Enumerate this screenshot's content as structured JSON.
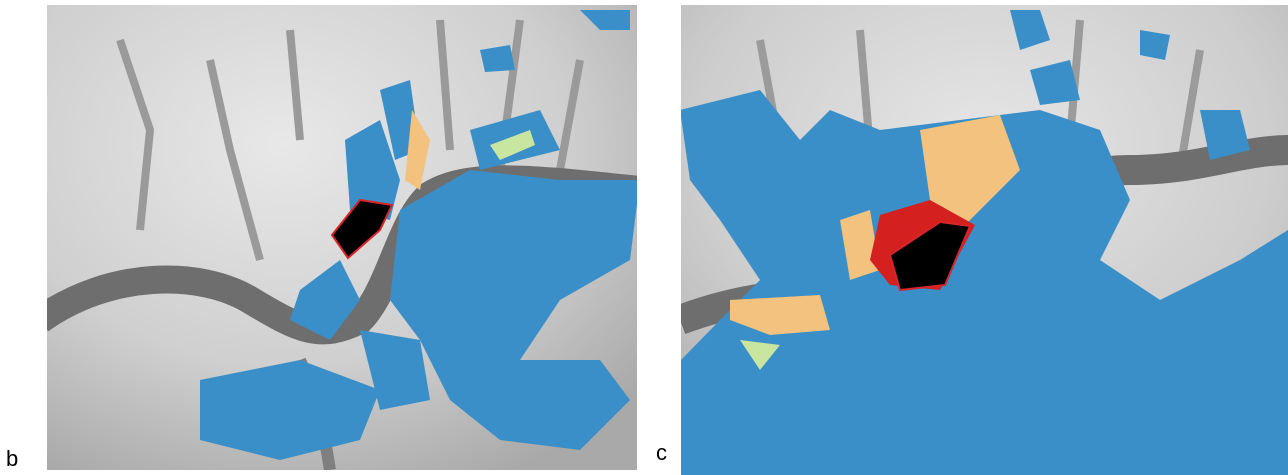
{
  "panels": [
    {
      "label": "b"
    },
    {
      "label": "c"
    }
  ]
}
